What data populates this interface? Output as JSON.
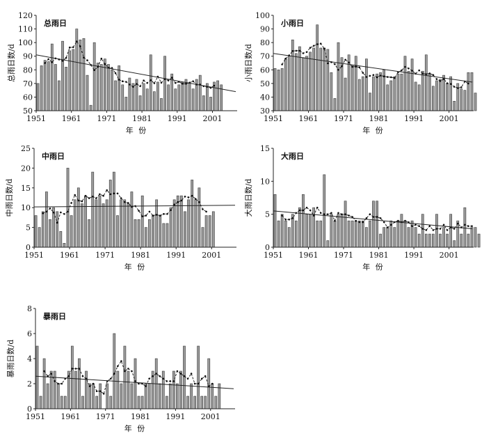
{
  "chart_data": [
    {
      "type": "bar",
      "title": "总雨日",
      "ylabel": "总雨日数/d",
      "xlabel": "年  份",
      "ylim": [
        50,
        120
      ],
      "yticks": [
        50,
        60,
        70,
        80,
        90,
        100,
        110,
        120
      ],
      "xticks": [
        "1951",
        "1961",
        "1971",
        "1981",
        "1991",
        "2001"
      ],
      "start_year": 1951,
      "values": [
        70,
        83,
        87,
        86,
        99,
        84,
        72,
        101,
        82,
        94,
        95,
        110,
        102,
        103,
        76,
        54,
        100,
        85,
        84,
        88,
        84,
        80,
        72,
        83,
        69,
        60,
        74,
        70,
        73,
        61,
        70,
        66,
        91,
        64,
        71,
        59,
        90,
        69,
        77,
        66,
        69,
        71,
        73,
        70,
        66,
        73,
        76,
        61,
        70,
        60,
        71,
        72,
        69
      ],
      "trend": {
        "start": 91,
        "end": 64
      },
      "smooth_series": true
    },
    {
      "type": "bar",
      "title": "小雨日",
      "ylabel": "小雨日数/d",
      "xlabel": "年  份",
      "ylim": [
        30,
        100
      ],
      "yticks": [
        30,
        40,
        50,
        60,
        70,
        80,
        90,
        100
      ],
      "xticks": [
        "1951",
        "1961",
        "1971",
        "1981",
        "1991",
        "2001"
      ],
      "start_year": 1951,
      "values": [
        61,
        60,
        61,
        68,
        70,
        82,
        72,
        77,
        69,
        70,
        73,
        76,
        93,
        76,
        76,
        75,
        58,
        39,
        80,
        69,
        54,
        71,
        63,
        70,
        53,
        55,
        68,
        43,
        55,
        57,
        58,
        60,
        49,
        52,
        55,
        57,
        57,
        70,
        59,
        68,
        51,
        49,
        59,
        71,
        57,
        48,
        52,
        53,
        56,
        50,
        55,
        37,
        50,
        46,
        45,
        58,
        58,
        43
      ],
      "trend": {
        "start": 72,
        "end": 51
      },
      "smooth_series": true
    },
    {
      "type": "bar",
      "title": "中雨日",
      "ylabel": "中雨日数/d",
      "xlabel": "年  份",
      "ylim": [
        0,
        25
      ],
      "yticks": [
        0,
        5,
        10,
        15,
        20,
        25
      ],
      "xticks": [
        "1951",
        "1961",
        "1971",
        "1981",
        "1991",
        "2001"
      ],
      "start_year": 1951,
      "values": [
        8,
        5,
        9,
        14,
        7,
        10,
        9,
        4,
        1,
        20,
        8,
        12,
        15,
        11,
        13,
        7,
        19,
        12,
        13,
        11,
        12,
        17,
        19,
        8,
        12,
        12,
        11,
        14,
        7,
        7,
        13,
        5,
        7,
        8,
        12,
        8,
        6,
        6,
        10,
        12,
        13,
        13,
        9,
        12,
        17,
        12,
        15,
        5,
        8,
        8,
        9
      ],
      "trend": {
        "start": 10.2,
        "end": 10.6
      },
      "smooth_series": true
    },
    {
      "type": "bar",
      "title": "大雨日",
      "ylabel": "大雨日数/d",
      "xlabel": "年  份",
      "ylim": [
        0,
        15
      ],
      "yticks": [
        0,
        5,
        10,
        15
      ],
      "xticks": [
        "1951",
        "1961",
        "1971",
        "1981",
        "1991",
        "2001"
      ],
      "start_year": 1951,
      "values": [
        8,
        4,
        5,
        4,
        3,
        5,
        4,
        6,
        8,
        5,
        5,
        6,
        4,
        4,
        11,
        1,
        5,
        4,
        5,
        5,
        7,
        4,
        4,
        4,
        4,
        4,
        3,
        4,
        7,
        7,
        2,
        3,
        3,
        4,
        3,
        4,
        5,
        4,
        3,
        4,
        3,
        2,
        5,
        2,
        2,
        2,
        5,
        2,
        3,
        2,
        5,
        1,
        4,
        2,
        6,
        2,
        3,
        3,
        2
      ],
      "trend": {
        "start": 5.5,
        "end": 2.8
      },
      "smooth_series": true
    },
    {
      "type": "bar",
      "title": "暴雨日",
      "ylabel": "暴雨日数/d",
      "xlabel": "年  份",
      "ylim": [
        0,
        8
      ],
      "yticks": [
        0,
        2,
        4,
        6,
        8
      ],
      "xticks": [
        "1951",
        "1961",
        "1971",
        "1981",
        "1991",
        "2001"
      ],
      "start_year": 1951,
      "values": [
        5,
        1,
        4,
        2,
        3,
        3,
        2,
        1,
        1,
        3,
        5,
        3,
        4,
        1,
        3,
        2,
        2,
        1,
        2,
        0,
        2,
        1,
        6,
        3,
        2,
        5,
        3,
        2,
        4,
        1,
        1,
        2,
        2,
        3,
        4,
        2,
        3,
        1,
        2,
        3,
        2,
        3,
        5,
        1,
        2,
        1,
        5,
        1,
        1,
        4,
        2,
        1,
        2
      ],
      "trend": {
        "start": 2.6,
        "end": 1.6
      },
      "smooth_series": true
    }
  ]
}
